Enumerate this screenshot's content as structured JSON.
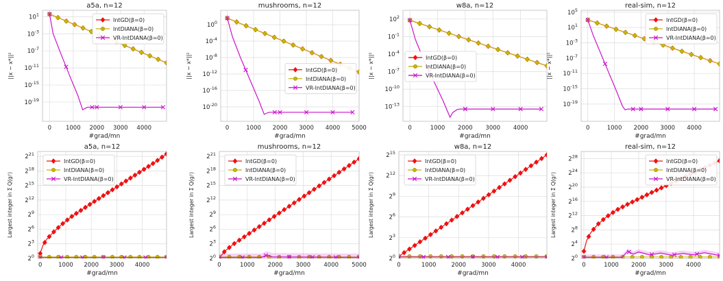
{
  "colors": {
    "intgd": "#ee1111",
    "intdiana": "#c8b400",
    "vr": "#cc11cc",
    "grid": "#dcdcdc",
    "frame": "#bdbdbd"
  },
  "legend_labels": [
    "IntGD(β=0)",
    "IntDIANA(β=0)",
    "VR-IntDIANA(β=0)"
  ],
  "chart_data": [
    {
      "type": "line",
      "title": "a5a, n=12",
      "xlabel": "#grad/mn",
      "ylabel": "||x − x*||²",
      "yscale": "log10",
      "xlim": [
        -300,
        4950
      ],
      "ylim": [
        -23.5,
        2.5
      ],
      "xticks": [
        0,
        1000,
        2000,
        3000,
        4000
      ],
      "yticks": [
        {
          "v": 1,
          "b": "10",
          "e": "1"
        },
        {
          "v": -3,
          "b": "10",
          "e": "-3"
        },
        {
          "v": -7,
          "b": "10",
          "e": "-7"
        },
        {
          "v": -11,
          "b": "10",
          "e": "-11"
        },
        {
          "v": -15,
          "b": "10",
          "e": "-15"
        },
        {
          "v": -19,
          "b": "10",
          "e": "-19"
        }
      ],
      "legend": "top-right",
      "grid": true,
      "series": [
        {
          "name": "IntGD(β=0)",
          "marker": "diamond",
          "x": [
            0,
            4950
          ],
          "y": [
            1.6,
            -9.8
          ]
        },
        {
          "name": "IntDIANA(β=0)",
          "marker": "circle",
          "x": [
            0,
            4950
          ],
          "y": [
            1.6,
            -9.8
          ]
        },
        {
          "name": "VR-IntDIANA(β=0)",
          "marker": "x",
          "x": [
            0,
            150,
            500,
            900,
            1200,
            1400,
            1500,
            1600,
            4800
          ],
          "y": [
            1.6,
            -3,
            -8,
            -13.5,
            -17.5,
            -20.8,
            -20.5,
            -20.2,
            -20.2
          ]
        }
      ]
    },
    {
      "type": "line",
      "title": "mushrooms, n=12",
      "xlabel": "#grad/mn",
      "ylabel": "||x − x*||²",
      "yscale": "log10",
      "xlim": [
        -250,
        5000
      ],
      "ylim": [
        -23.5,
        3.5
      ],
      "xticks": [
        0,
        1000,
        2000,
        3000,
        4000,
        5000
      ],
      "yticks": [
        {
          "v": 0,
          "b": "10",
          "e": "0"
        },
        {
          "v": -4,
          "b": "10",
          "e": "-4"
        },
        {
          "v": -8,
          "b": "10",
          "e": "-8"
        },
        {
          "v": -12,
          "b": "10",
          "e": "-12"
        },
        {
          "v": -16,
          "b": "10",
          "e": "-16"
        },
        {
          "v": -20,
          "b": "10",
          "e": "-20"
        }
      ],
      "legend": "center-right",
      "grid": true,
      "series": [
        {
          "name": "IntGD(β=0)",
          "marker": "diamond",
          "x": [
            0,
            5000
          ],
          "y": [
            1.6,
            -11.5
          ]
        },
        {
          "name": "IntDIANA(β=0)",
          "marker": "circle",
          "x": [
            0,
            5000
          ],
          "y": [
            1.6,
            -11.5
          ]
        },
        {
          "name": "VR-IntDIANA(β=0)",
          "marker": "x",
          "x": [
            0,
            200,
            500,
            900,
            1200,
            1400,
            1500,
            1600,
            4750
          ],
          "y": [
            1.6,
            -3,
            -8,
            -14,
            -18.5,
            -21.8,
            -21.5,
            -21.3,
            -21.3
          ]
        }
      ]
    },
    {
      "type": "line",
      "title": "w8a, n=12",
      "xlabel": "#grad/mn",
      "ylabel": "||x − x*||²",
      "yscale": "log10",
      "xlim": [
        -250,
        4950
      ],
      "ylim": [
        -15.5,
        3.5
      ],
      "xticks": [
        0,
        1000,
        2000,
        3000,
        4000
      ],
      "yticks": [
        {
          "v": 2,
          "b": "10",
          "e": "2"
        },
        {
          "v": -1,
          "b": "10",
          "e": "-1"
        },
        {
          "v": -4,
          "b": "10",
          "e": "-4"
        },
        {
          "v": -7,
          "b": "10",
          "e": "-7"
        },
        {
          "v": -10,
          "b": "10",
          "e": "-10"
        },
        {
          "v": -13,
          "b": "10",
          "e": "-13"
        }
      ],
      "legend": "center-left",
      "grid": true,
      "series": [
        {
          "name": "IntGD(β=0)",
          "marker": "diamond",
          "x": [
            0,
            4950
          ],
          "y": [
            1.8,
            -6.0
          ]
        },
        {
          "name": "IntDIANA(β=0)",
          "marker": "circle",
          "x": [
            0,
            4950
          ],
          "y": [
            1.8,
            -6.0
          ]
        },
        {
          "name": "VR-IntDIANA(β=0)",
          "marker": "x",
          "x": [
            0,
            200,
            500,
            900,
            1200,
            1450,
            1550,
            1700,
            1800,
            4750
          ],
          "y": [
            1.8,
            -1.5,
            -5,
            -9,
            -12,
            -14.8,
            -14.0,
            -13.5,
            -13.4,
            -13.4
          ]
        }
      ]
    },
    {
      "type": "line",
      "title": "real-sim, n=12",
      "xlabel": "#grad/mn",
      "ylabel": "||x − x*||²",
      "yscale": "log10",
      "xlim": [
        -250,
        4950
      ],
      "ylim": [
        -23.5,
        5.5
      ],
      "xticks": [
        0,
        1000,
        2000,
        3000,
        4000
      ],
      "yticks": [
        {
          "v": 5,
          "b": "10",
          "e": "5"
        },
        {
          "v": 1,
          "b": "10",
          "e": "1"
        },
        {
          "v": -3,
          "b": "10",
          "e": "-3"
        },
        {
          "v": -7,
          "b": "10",
          "e": "-7"
        },
        {
          "v": -11,
          "b": "10",
          "e": "-11"
        },
        {
          "v": -15,
          "b": "10",
          "e": "-15"
        },
        {
          "v": -19,
          "b": "10",
          "e": "-19"
        }
      ],
      "legend": "top-right",
      "grid": true,
      "series": [
        {
          "name": "IntGD(β=0)",
          "marker": "diamond",
          "x": [
            0,
            4950
          ],
          "y": [
            3.0,
            -8.5
          ]
        },
        {
          "name": "IntDIANA(β=0)",
          "marker": "circle",
          "x": [
            0,
            4950
          ],
          "y": [
            3.0,
            -8.5
          ]
        },
        {
          "name": "VR-IntDIANA(β=0)",
          "marker": "x",
          "x": [
            0,
            200,
            500,
            800,
            1100,
            1300,
            1400,
            1500,
            4800
          ],
          "y": [
            3.0,
            -1,
            -6,
            -11,
            -16,
            -19.5,
            -20.5,
            -20.3,
            -20.3
          ]
        }
      ]
    },
    {
      "type": "line",
      "title": "a5a, n=12",
      "xlabel": "#grad/mn",
      "ylabel": "Largest integer in Σ Q(gᵢᵗ)",
      "yscale": "log2",
      "xlim": [
        -100,
        4950
      ],
      "ylim": [
        0,
        22
      ],
      "xticks": [
        0,
        1000,
        2000,
        3000,
        4000
      ],
      "yticks": [
        {
          "v": 0,
          "b": "2",
          "e": "0"
        },
        {
          "v": 3,
          "b": "2",
          "e": "3"
        },
        {
          "v": 6,
          "b": "2",
          "e": "6"
        },
        {
          "v": 9,
          "b": "2",
          "e": "9"
        },
        {
          "v": 12,
          "b": "2",
          "e": "12"
        },
        {
          "v": 15,
          "b": "2",
          "e": "15"
        },
        {
          "v": 18,
          "b": "2",
          "e": "18"
        },
        {
          "v": 21,
          "b": "2",
          "e": "21"
        }
      ],
      "legend": "top-left",
      "grid": true,
      "series": [
        {
          "name": "IntGD(β=0)",
          "marker": "diamond",
          "x": [
            0,
            100,
            250,
            500,
            800,
            1200,
            1600,
            2000,
            2500,
            3000,
            3500,
            4000,
            4500,
            4950
          ],
          "y": [
            1.0,
            2.6,
            3.9,
            5.3,
            6.8,
            8.5,
            9.9,
            11.3,
            13.0,
            14.7,
            16.4,
            18.1,
            19.8,
            21.5
          ]
        },
        {
          "name": "IntDIANA(β=0)",
          "marker": "circle",
          "x": [
            0,
            4950
          ],
          "y": [
            0.3,
            0.3
          ]
        },
        {
          "name": "VR-IntDIANA(β=0)",
          "marker": "x",
          "x": [
            0,
            4950
          ],
          "y": [
            0.2,
            0.2
          ]
        }
      ]
    },
    {
      "type": "line",
      "title": "mushrooms, n=12",
      "xlabel": "#grad/mn",
      "ylabel": "Largest integer in Σ Q(gᵢᵗ)",
      "yscale": "log2",
      "xlim": [
        0,
        5000
      ],
      "ylim": [
        0,
        22
      ],
      "xticks": [
        0,
        1000,
        2000,
        3000,
        4000,
        5000
      ],
      "yticks": [
        {
          "v": 0,
          "b": "2",
          "e": "0"
        },
        {
          "v": 3,
          "b": "2",
          "e": "3"
        },
        {
          "v": 6,
          "b": "2",
          "e": "6"
        },
        {
          "v": 9,
          "b": "2",
          "e": "9"
        },
        {
          "v": 12,
          "b": "2",
          "e": "12"
        },
        {
          "v": 15,
          "b": "2",
          "e": "15"
        },
        {
          "v": 18,
          "b": "2",
          "e": "18"
        },
        {
          "v": 21,
          "b": "2",
          "e": "21"
        }
      ],
      "legend": "top-left",
      "grid": true,
      "series": [
        {
          "name": "IntGD(β=0)",
          "marker": "diamond",
          "x": [
            0,
            200,
            500,
            5000
          ],
          "y": [
            0.1,
            1.5,
            2.9,
            20.5
          ]
        },
        {
          "name": "IntDIANA(β=0)",
          "marker": "circle",
          "x": [
            0,
            5000
          ],
          "y": [
            0.3,
            0.3
          ]
        },
        {
          "name": "VR-IntDIANA(β=0)",
          "marker": "x",
          "x": [
            0,
            1500,
            1700,
            1900,
            5000
          ],
          "y": [
            0.2,
            0.2,
            0.7,
            0.3,
            0.2
          ]
        }
      ]
    },
    {
      "type": "line",
      "title": "w8a, n=12",
      "xlabel": "#grad/mn",
      "ylabel": "Largest integer in Σ Q(gᵢᵗ)",
      "yscale": "log2",
      "xlim": [
        0,
        4950
      ],
      "ylim": [
        0,
        15.5
      ],
      "xticks": [
        0,
        1000,
        2000,
        3000,
        4000
      ],
      "yticks": [
        {
          "v": 0,
          "b": "2",
          "e": "0"
        },
        {
          "v": 3,
          "b": "2",
          "e": "3"
        },
        {
          "v": 6,
          "b": "2",
          "e": "6"
        },
        {
          "v": 9,
          "b": "2",
          "e": "9"
        },
        {
          "v": 12,
          "b": "2",
          "e": "12"
        },
        {
          "v": 15,
          "b": "2",
          "e": "15"
        }
      ],
      "legend": "top-left",
      "grid": true,
      "series": [
        {
          "name": "IntGD(β=0)",
          "marker": "diamond",
          "x": [
            0,
            4950
          ],
          "y": [
            0.3,
            15.0
          ]
        },
        {
          "name": "IntDIANA(β=0)",
          "marker": "circle",
          "x": [
            0,
            4950
          ],
          "y": [
            0.3,
            0.3
          ]
        },
        {
          "name": "VR-IntDIANA(β=0)",
          "marker": "x",
          "x": [
            0,
            4950
          ],
          "y": [
            0.2,
            0.2
          ]
        }
      ]
    },
    {
      "type": "line",
      "title": "real-sim, n=12",
      "xlabel": "#grad/mn",
      "ylabel": "Largest integer in Σ Q(gᵢᵗ)",
      "yscale": "log2",
      "xlim": [
        -100,
        4950
      ],
      "ylim": [
        0,
        30
      ],
      "xticks": [
        0,
        1000,
        2000,
        3000,
        4000
      ],
      "yticks": [
        {
          "v": 0,
          "b": "2",
          "e": "0"
        },
        {
          "v": 4,
          "b": "2",
          "e": "4"
        },
        {
          "v": 8,
          "b": "2",
          "e": "8"
        },
        {
          "v": 12,
          "b": "2",
          "e": "12"
        },
        {
          "v": 16,
          "b": "2",
          "e": "16"
        },
        {
          "v": 20,
          "b": "2",
          "e": "20"
        },
        {
          "v": 24,
          "b": "2",
          "e": "24"
        },
        {
          "v": 28,
          "b": "2",
          "e": "28"
        }
      ],
      "legend": "top-right",
      "grid": true,
      "series": [
        {
          "name": "IntGD(β=0)",
          "marker": "diamond",
          "x": [
            0,
            100,
            250,
            500,
            800,
            1200,
            1600,
            2000,
            2500,
            3000,
            3500,
            4000,
            4500,
            4950
          ],
          "y": [
            2.0,
            5.0,
            7.2,
            9.5,
            11.5,
            13.6,
            15.2,
            16.7,
            18.6,
            20.4,
            22.2,
            24.0,
            25.8,
            27.4
          ]
        },
        {
          "name": "IntDIANA(β=0)",
          "marker": "circle",
          "x": [
            0,
            4950
          ],
          "y": [
            0.4,
            0.4
          ]
        },
        {
          "name": "VR-IntDIANA(β=0)",
          "marker": "x",
          "x": [
            0,
            1400,
            1600,
            1800,
            2000,
            2400,
            2800,
            3200,
            3600,
            4000,
            4400,
            4950
          ],
          "y": [
            0.3,
            0.3,
            2.0,
            1.2,
            1.8,
            1.0,
            1.5,
            0.9,
            1.4,
            1.0,
            1.6,
            0.8
          ]
        }
      ]
    }
  ]
}
